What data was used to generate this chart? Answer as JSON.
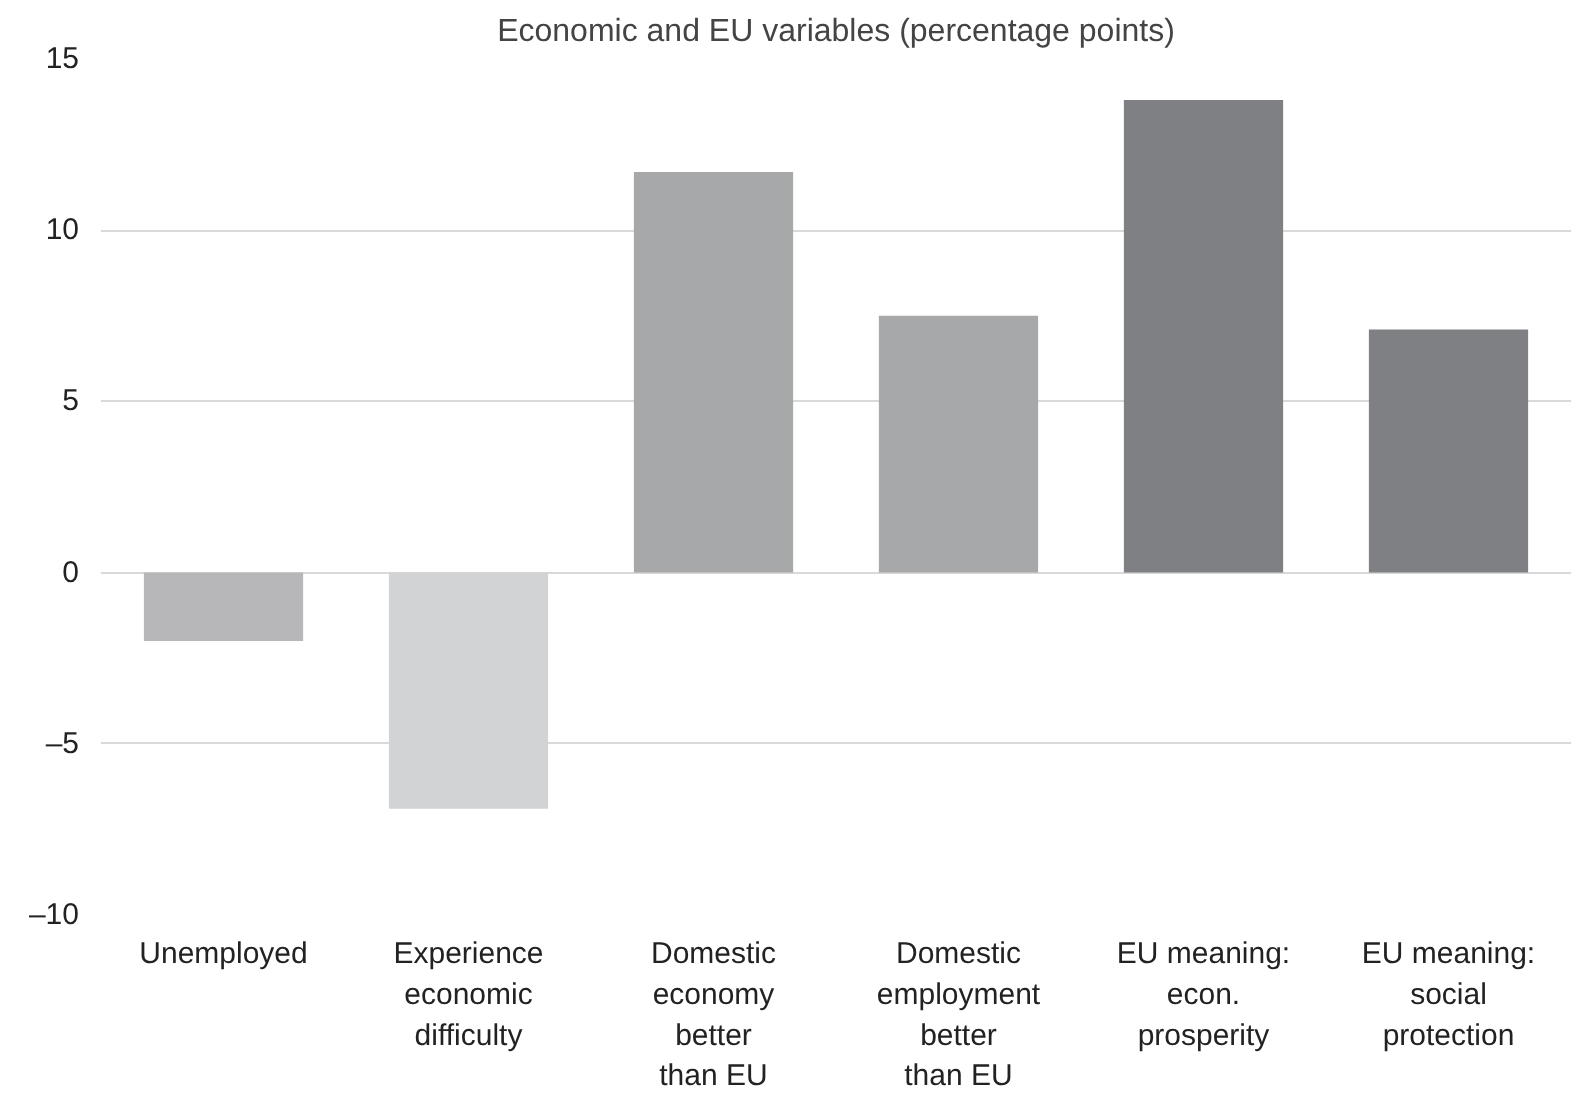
{
  "chart_data": {
    "type": "bar",
    "title": "Economic and EU variables (percentage points)",
    "categories": [
      "Unemployed",
      "Experience\neconomic\ndifficulty",
      "Domestic\neconomy\nbetter\nthan EU",
      "Domestic\nemployment\nbetter\nthan EU",
      "EU meaning:\necon.\nprosperity",
      "EU meaning:\nsocial\nprotection"
    ],
    "values": [
      -2.0,
      -6.9,
      11.7,
      7.5,
      13.8,
      7.1
    ],
    "colors": [
      "#b7b7b9",
      "#d2d3d4",
      "#a7a8aa",
      "#a7a8aa",
      "#7f8083",
      "#7f8083"
    ],
    "ylim": [
      -10,
      15
    ],
    "yticks": [
      {
        "value": -10,
        "label": "–10"
      },
      {
        "value": -5,
        "label": "–5"
      },
      0,
      5,
      10,
      15
    ],
    "grid": "y"
  }
}
